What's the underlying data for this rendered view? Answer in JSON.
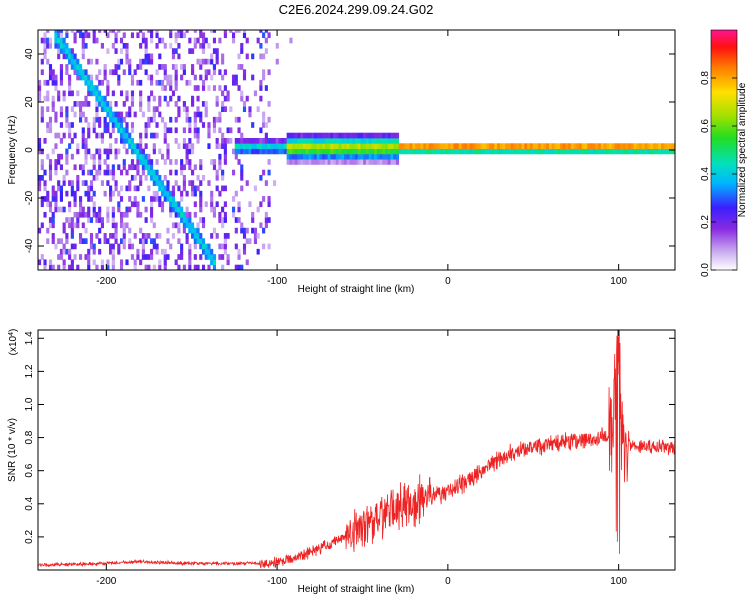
{
  "title": "C2E6.2024.299.09.24.G02",
  "chart_data": [
    {
      "type": "heatmap",
      "xlabel": "Height of straight line (km)",
      "ylabel": "Frequency (Hz)",
      "xlim": [
        -240,
        133
      ],
      "ylim": [
        -50,
        50
      ],
      "xticks": [
        -200,
        -100,
        0,
        100
      ],
      "yticks": [
        -40,
        -20,
        0,
        20,
        40
      ],
      "colorbar": {
        "label": "Normalized spectral amplitude",
        "range": [
          0,
          1
        ],
        "ticks": [
          "0.0",
          "0.2",
          "0.4",
          "0.6",
          "0.8"
        ],
        "colors": [
          "#ffffff",
          "#c8a8f0",
          "#8a2be2",
          "#3b1fff",
          "#00b4ff",
          "#00e0c0",
          "#22dd22",
          "#a0e000",
          "#ffe000",
          "#ff8000",
          "#ff1010",
          "#ff1493"
        ]
      },
      "features": {
        "noise_region_x": [
          -240,
          -105
        ],
        "carrier_frequency_hz": 0,
        "diagonal_track": {
          "x": [
            -232,
            -137
          ],
          "y": [
            48,
            -48
          ]
        },
        "carrier_onset_x": -125,
        "strong_signal_x": [
          -90,
          -30
        ]
      }
    },
    {
      "type": "line",
      "xlabel": "Height of straight line (km)",
      "ylabel": "SNR (10 * v/v)",
      "yunit": "(x10^4)",
      "xlim": [
        -240,
        133
      ],
      "ylim": [
        0,
        1.45
      ],
      "xticks": [
        -200,
        -100,
        0,
        100
      ],
      "yticks": [
        0.2,
        0.4,
        0.6,
        0.8,
        1.0,
        1.2,
        1.4
      ],
      "color": "#ee2222",
      "series": [
        {
          "x": [
            -240,
            -200,
            -180,
            -150,
            -120,
            -105,
            -95,
            -85,
            -75,
            -65,
            -55,
            -45,
            -35,
            -25,
            -15,
            -5,
            5,
            15,
            25,
            35,
            45,
            55,
            65,
            75,
            85,
            95,
            98,
            100,
            102,
            105,
            115,
            125,
            133
          ],
          "y": [
            0.03,
            0.04,
            0.05,
            0.04,
            0.04,
            0.04,
            0.06,
            0.09,
            0.13,
            0.18,
            0.24,
            0.3,
            0.35,
            0.4,
            0.43,
            0.46,
            0.5,
            0.56,
            0.64,
            0.7,
            0.73,
            0.75,
            0.77,
            0.78,
            0.79,
            0.82,
            1.1,
            1.45,
            0.7,
            0.76,
            0.75,
            0.74,
            0.74
          ]
        }
      ]
    }
  ]
}
